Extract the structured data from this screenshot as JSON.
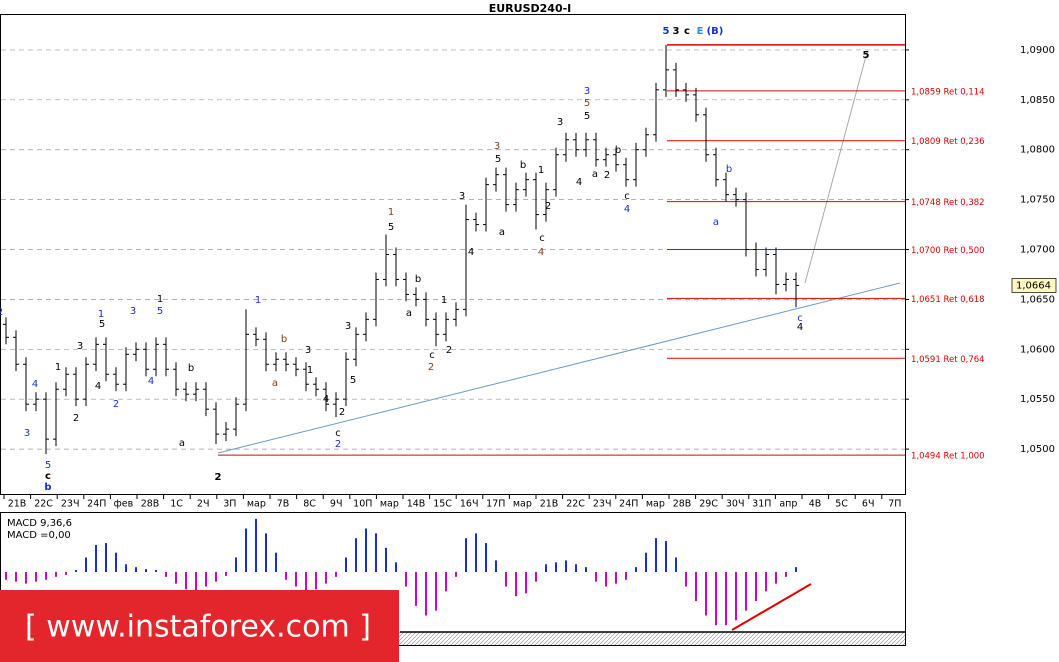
{
  "chart_data": {
    "type": "ohlc",
    "title": "EURUSD240-I",
    "ylim": [
      1.0455,
      1.0936
    ],
    "yticks": [
      {
        "value": 1.05,
        "label": "1,0500"
      },
      {
        "value": 1.055,
        "label": "1,0550"
      },
      {
        "value": 1.06,
        "label": "1,0600"
      },
      {
        "value": 1.065,
        "label": "1,0650"
      },
      {
        "value": 1.07,
        "label": "1,0700"
      },
      {
        "value": 1.075,
        "label": "1,0750"
      },
      {
        "value": 1.08,
        "label": "1,0800"
      },
      {
        "value": 1.085,
        "label": "1,0850"
      },
      {
        "value": 1.09,
        "label": "1,0900"
      }
    ],
    "grid": true,
    "bar_color": "#000000",
    "x_labels": [
      "21В",
      "22С",
      "23Ч",
      "24П",
      "фев",
      "28В",
      "1С",
      "2Ч",
      "3П",
      "мар",
      "7В",
      "8С",
      "9Ч",
      "10П",
      "мар",
      "14В",
      "15С",
      "16Ч",
      "17П",
      "мар",
      "21В",
      "22С",
      "23Ч",
      "24П",
      "мар",
      "28В",
      "29С",
      "30Ч",
      "31П",
      "апр",
      "4В",
      "5С",
      "6Ч",
      "7П"
    ],
    "open": [
      1.0625,
      1.0612,
      1.0585,
      1.0545,
      1.055,
      1.051,
      1.056,
      1.0575,
      1.055,
      1.0585,
      1.0605,
      1.0575,
      1.0565,
      1.0595,
      1.06,
      1.058,
      1.0605,
      1.058,
      1.056,
      1.0555,
      1.056,
      1.054,
      1.0515,
      1.052,
      1.0545,
      1.0615,
      1.061,
      1.0585,
      1.059,
      1.0585,
      1.058,
      1.0565,
      1.056,
      1.0545,
      1.055,
      1.059,
      1.0615,
      1.063,
      1.067,
      1.0695,
      1.067,
      1.0655,
      1.065,
      1.063,
      1.0615,
      1.063,
      1.064,
      1.073,
      1.0725,
      1.0765,
      1.0775,
      1.0745,
      1.076,
      1.077,
      1.0735,
      1.076,
      1.0795,
      1.081,
      1.08,
      1.081,
      1.079,
      1.0795,
      1.0785,
      1.077,
      1.08,
      1.0815,
      1.086,
      1.088,
      1.086,
      1.0855,
      1.0835,
      1.0795,
      1.077,
      1.0755,
      1.075,
      1.07,
      1.068,
      1.0695,
      1.0665,
      1.067
    ],
    "high": [
      1.0632,
      1.0619,
      1.0592,
      1.0557,
      1.0557,
      1.0567,
      1.0582,
      1.0582,
      1.0592,
      1.0612,
      1.0612,
      1.0582,
      1.0602,
      1.0607,
      1.0607,
      1.0612,
      1.0612,
      1.0587,
      1.0567,
      1.0567,
      1.0567,
      1.0547,
      1.0527,
      1.0552,
      1.064,
      1.0622,
      1.0617,
      1.0597,
      1.0597,
      1.0592,
      1.0587,
      1.0572,
      1.0567,
      1.0557,
      1.0597,
      1.0622,
      1.0637,
      1.0677,
      1.0715,
      1.0702,
      1.0677,
      1.0662,
      1.0657,
      1.0637,
      1.0637,
      1.0647,
      1.0745,
      1.0737,
      1.0772,
      1.0782,
      1.0782,
      1.0767,
      1.0777,
      1.0777,
      1.0767,
      1.0802,
      1.0817,
      1.0817,
      1.0817,
      1.0817,
      1.0802,
      1.0802,
      1.0792,
      1.0807,
      1.0822,
      1.0867,
      1.0905,
      1.0887,
      1.0867,
      1.0862,
      1.0842,
      1.0802,
      1.0777,
      1.0762,
      1.0757,
      1.0707,
      1.0702,
      1.0702,
      1.0677,
      1.0677
    ],
    "low": [
      1.0605,
      1.0578,
      1.0538,
      1.0538,
      1.0495,
      1.0503,
      1.0553,
      1.0543,
      1.0543,
      1.0578,
      1.0568,
      1.0558,
      1.0558,
      1.0588,
      1.0573,
      1.0573,
      1.0573,
      1.0553,
      1.0548,
      1.0548,
      1.0533,
      1.0505,
      1.0508,
      1.0513,
      1.0538,
      1.0603,
      1.0578,
      1.0578,
      1.0578,
      1.0573,
      1.0558,
      1.0553,
      1.0538,
      1.0532,
      1.0543,
      1.0583,
      1.0608,
      1.0623,
      1.0663,
      1.0663,
      1.0648,
      1.0643,
      1.0623,
      1.0603,
      1.0608,
      1.0623,
      1.0633,
      1.0718,
      1.0718,
      1.0758,
      1.0738,
      1.0738,
      1.0753,
      1.072,
      1.0728,
      1.0753,
      1.0788,
      1.0793,
      1.0793,
      1.0783,
      1.0783,
      1.0778,
      1.0763,
      1.0763,
      1.0793,
      1.0808,
      1.0853,
      1.0853,
      1.0848,
      1.0828,
      1.0788,
      1.0763,
      1.0748,
      1.0743,
      1.0693,
      1.0673,
      1.0673,
      1.0655,
      1.0658,
      1.0642
    ],
    "close": [
      1.0612,
      1.0585,
      1.0545,
      1.055,
      1.051,
      1.056,
      1.0575,
      1.055,
      1.0585,
      1.0605,
      1.0575,
      1.0565,
      1.0595,
      1.06,
      1.058,
      1.0605,
      1.058,
      1.056,
      1.0555,
      1.056,
      1.054,
      1.0515,
      1.052,
      1.0545,
      1.0615,
      1.061,
      1.0585,
      1.059,
      1.0585,
      1.058,
      1.0565,
      1.056,
      1.0545,
      1.055,
      1.059,
      1.0615,
      1.063,
      1.067,
      1.0695,
      1.067,
      1.0655,
      1.065,
      1.063,
      1.0615,
      1.063,
      1.064,
      1.073,
      1.0725,
      1.0765,
      1.0775,
      1.0745,
      1.076,
      1.077,
      1.0735,
      1.076,
      1.0795,
      1.081,
      1.08,
      1.081,
      1.079,
      1.0795,
      1.0785,
      1.077,
      1.08,
      1.0815,
      1.086,
      1.088,
      1.086,
      1.0855,
      1.0835,
      1.0795,
      1.077,
      1.0755,
      1.075,
      1.07,
      1.068,
      1.0695,
      1.0665,
      1.067,
      1.0664
    ],
    "last_price": {
      "value": 1.0664,
      "label": "1,0664"
    },
    "swing_high": 1.0905,
    "fib_color": "#e00000",
    "fib_levels": [
      {
        "value": 1.0859,
        "label": "1,0859 Ret 0,114"
      },
      {
        "value": 1.0809,
        "label": "1,0809 Ret 0,236"
      },
      {
        "value": 1.0748,
        "label": "1,0748 Ret 0,382"
      },
      {
        "value": 1.07,
        "label": "1,0700 Ret 0,500"
      },
      {
        "value": 1.0651,
        "label": "1,0651 Ret 0,618"
      },
      {
        "value": 1.0591,
        "label": "1,0591 Ret 0,764"
      },
      {
        "value": 1.0494,
        "label": "1,0494 Ret 1,000"
      }
    ],
    "wave_labels": [
      "2",
      "4",
      "3",
      "5",
      "c",
      "b",
      "1",
      "3",
      "2",
      "4",
      "1",
      "5",
      "2",
      "3",
      "4",
      "1",
      "5",
      "b",
      "a",
      "2",
      "1",
      "b",
      "a",
      "3",
      "1",
      "4",
      "2",
      "c",
      "2",
      "3",
      "5",
      "1",
      "5",
      "b",
      "a",
      "1",
      "c",
      "2",
      "2",
      "3",
      "4",
      "3",
      "5",
      "a",
      "b",
      "1",
      "2",
      "c",
      "4",
      "3",
      "3",
      "5",
      "5",
      "4",
      "a",
      "b",
      "2",
      "c",
      "4",
      "5",
      "3",
      "c",
      "E",
      "(B)",
      "5",
      "a",
      "b",
      "c",
      "4"
    ],
    "wave_label_colors": [
      "#1a2fd0",
      "#1a2fd0",
      "#1a2fd0",
      "#1a2fd0",
      "#000",
      "#1a2fd0",
      "#000",
      "#000",
      "#000",
      "#000",
      "#1a2fd0",
      "#000",
      "#1a2fd0",
      "#1a2fd0",
      "#1a2fd0",
      "#000",
      "#1a2fd0",
      "#000",
      "#000",
      "#000",
      "#1a2fd0",
      "#8b3a1a",
      "#8b3a1a",
      "#000",
      "#000",
      "#000",
      "#000",
      "#000",
      "#1a2fd0",
      "#000",
      "#000",
      "#8b3a1a",
      "#000",
      "#000",
      "#000",
      "#000",
      "#000",
      "#000",
      "#8b3a1a",
      "#000",
      "#000",
      "#8b3a1a",
      "#000",
      "#000",
      "#000",
      "#000",
      "#000",
      "#000",
      "#8b3a1a",
      "#000",
      "#1a2fd0",
      "#8b3a1a",
      "#000",
      "#000",
      "#000",
      "#000",
      "#000",
      "#000",
      "#1a2fd0",
      "#1a2fd0",
      "#000",
      "#000",
      "#1e90ff",
      "#1a2fd0",
      "#000",
      "#1a2fd0",
      "#1a2fd0",
      "#1a2fd0",
      "#000"
    ],
    "macd": {
      "label": "MACD 9,36,6",
      "value_label": "MACD =0,00",
      "ylim": [
        -60,
        60
      ],
      "pos_color": "#1a2fd0",
      "neg_color": "#d000d0",
      "values": [
        -8,
        -10,
        -12,
        -10,
        -8,
        -5,
        -3,
        2,
        15,
        28,
        30,
        20,
        8,
        5,
        3,
        2,
        -5,
        -12,
        -18,
        -20,
        -15,
        -10,
        -4,
        15,
        45,
        55,
        40,
        20,
        -8,
        -15,
        -20,
        -18,
        -12,
        -5,
        15,
        35,
        45,
        40,
        25,
        10,
        -15,
        -35,
        -45,
        -40,
        -20,
        -5,
        35,
        40,
        30,
        12,
        -15,
        -25,
        -22,
        -10,
        8,
        10,
        12,
        8,
        5,
        -10,
        -15,
        -12,
        -8,
        5,
        20,
        35,
        32,
        15,
        -15,
        -30,
        -45,
        -55,
        -55,
        -50,
        -40,
        -30,
        -20,
        -12,
        -5,
        5
      ]
    },
    "watermark": "[ www.instaforex.com ]"
  }
}
